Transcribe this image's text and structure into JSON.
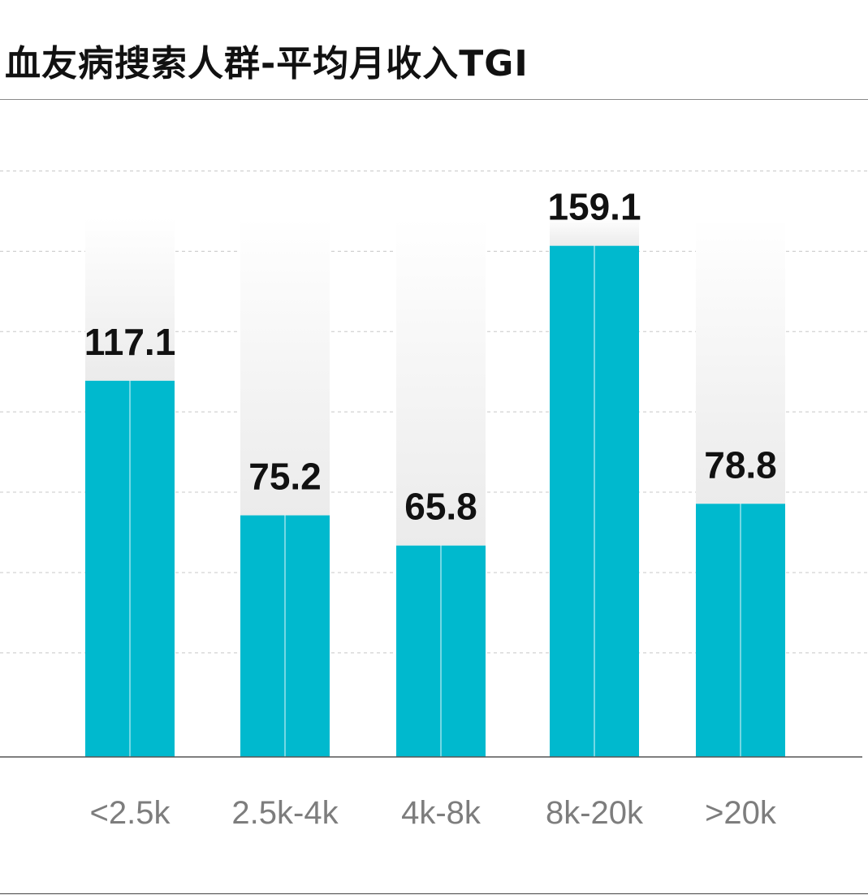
{
  "title": "血友病搜索人群-平均月收入TGI",
  "colors": {
    "bar": "#00B9CE",
    "grid": "#c8c8c8",
    "axis": "#555555",
    "value_text": "#111111",
    "category_text": "#7d7d7d"
  },
  "chart_data": {
    "type": "bar",
    "title": "血友病搜索人群-平均月收入TGI",
    "xlabel": "",
    "ylabel": "",
    "categories": [
      "<2.5k",
      "2.5k-4k",
      "4k-8k",
      "8k-20k",
      ">20k"
    ],
    "values": [
      117.1,
      75.2,
      65.8,
      159.1,
      78.8
    ],
    "value_labels": [
      "117.1",
      "75.2",
      "65.8",
      "159.1",
      "78.8"
    ],
    "ylim": [
      0,
      180
    ],
    "grid": true,
    "legend": "none"
  }
}
